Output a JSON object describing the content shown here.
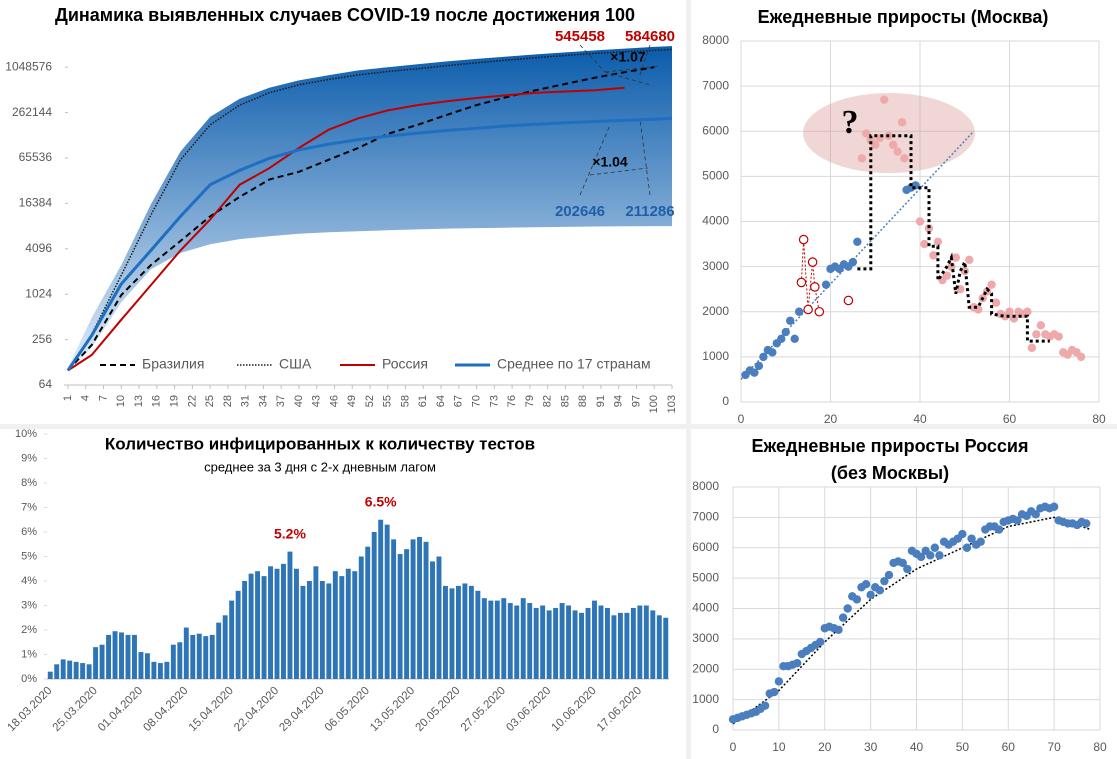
{
  "chart_data": [
    {
      "type": "line",
      "title": "Динамика выявленных случаев COVID-19 после достижения 100",
      "yscale": "log",
      "ylim": [
        64,
        2097152
      ],
      "yticks": [
        64,
        256,
        1024,
        4096,
        16384,
        65536,
        262144,
        1048576
      ],
      "xlim": [
        1,
        103
      ],
      "xticks": [
        1,
        4,
        7,
        10,
        13,
        16,
        19,
        22,
        25,
        28,
        31,
        34,
        37,
        40,
        43,
        46,
        49,
        52,
        55,
        58,
        61,
        64,
        67,
        70,
        73,
        76,
        79,
        82,
        85,
        88,
        91,
        94,
        97,
        100,
        103
      ],
      "x": [
        1,
        5,
        10,
        15,
        20,
        25,
        30,
        35,
        40,
        45,
        50,
        55,
        60,
        65,
        70,
        75,
        80,
        85,
        90,
        95,
        100,
        103
      ],
      "band": {
        "color_top": "#0a5bab",
        "color_bottom": "#e3eef9",
        "upper": [
          110,
          500,
          2500,
          16000,
          80000,
          230000,
          400000,
          560000,
          700000,
          820000,
          950000,
          1050000,
          1150000,
          1250000,
          1350000,
          1450000,
          1550000,
          1650000,
          1750000,
          1850000,
          1950000,
          2000000
        ],
        "lower": [
          100,
          200,
          800,
          2200,
          3600,
          4700,
          5500,
          6000,
          6500,
          6800,
          7000,
          7200,
          7400,
          7600,
          7700,
          7800,
          7900,
          8000,
          8100,
          8150,
          8200,
          8200
        ]
      },
      "series": [
        {
          "name": "Бразилия",
          "color": "#000000",
          "dash": "dashed",
          "width": 2,
          "values": [
            100,
            217,
            1000,
            2500,
            5200,
            11000,
            20000,
            34000,
            43000,
            62000,
            89000,
            137000,
            180000,
            245000,
            330000,
            420000,
            520000,
            630000,
            760000,
            900000,
            1050000,
            null
          ]
        },
        {
          "name": "США",
          "color": "#1a1a1a",
          "dash": "dotted",
          "width": 1.5,
          "values": [
            100,
            300,
            1830,
            11500,
            62000,
            180000,
            330000,
            480000,
            613000,
            720000,
            830000,
            920000,
            1000000,
            1100000,
            1200000,
            1300000,
            1400000,
            1500000,
            1600000,
            1680000,
            1750000,
            1800000
          ]
        },
        {
          "name": "Россия",
          "color": "#c00000",
          "dash": "solid",
          "width": 2,
          "values": [
            100,
            160,
            470,
            1350,
            3900,
            10000,
            29000,
            48000,
            89000,
            155000,
            220000,
            280000,
            330000,
            370000,
            410000,
            445000,
            480000,
            500000,
            520000,
            560000,
            null,
            null
          ]
        },
        {
          "name": "Среднее по 17 странам",
          "color": "#1f6fc0",
          "dash": "solid",
          "width": 3,
          "values": [
            100,
            290,
            1400,
            3900,
            11000,
            29000,
            45000,
            65000,
            84000,
            100000,
            115000,
            128000,
            140000,
            152000,
            163000,
            174000,
            184000,
            192000,
            200000,
            207000,
            214000,
            220000
          ]
        }
      ],
      "annotations": [
        {
          "text": "545458",
          "color": "#c00000"
        },
        {
          "text": "584680",
          "color": "#c00000"
        },
        {
          "text": "×1.07",
          "color": "#000000"
        },
        {
          "text": "×1.04",
          "color": "#000000"
        },
        {
          "text": "202646",
          "color": "#1f5fa8"
        },
        {
          "text": "211286",
          "color": "#1f5fa8"
        }
      ]
    },
    {
      "type": "scatter",
      "title": "Ежедневные приросты (Москва)",
      "grid": true,
      "xlim": [
        0,
        80
      ],
      "xticks": [
        0,
        20,
        40,
        60,
        80
      ],
      "ylim": [
        0,
        8000
      ],
      "yticks": [
        0,
        1000,
        2000,
        3000,
        4000,
        5000,
        6000,
        7000,
        8000
      ],
      "series": [
        {
          "color": "#4a7ebf",
          "marker": "filled",
          "x": [
            1,
            2,
            3,
            4,
            5,
            6,
            7,
            8,
            9,
            10,
            11,
            12,
            13,
            19,
            20,
            21,
            22,
            23,
            24,
            25,
            26,
            37,
            38,
            39
          ],
          "values": [
            600,
            700,
            650,
            800,
            1000,
            1150,
            1100,
            1300,
            1400,
            1550,
            1800,
            1400,
            2000,
            2600,
            2950,
            3000,
            2950,
            3050,
            3000,
            3100,
            3550,
            4700,
            4750,
            4800
          ]
        },
        {
          "color": "#eeaaaa",
          "marker": "filled",
          "x": [
            27,
            28,
            29,
            30,
            31,
            32,
            33,
            34,
            35,
            36,
            36.5,
            40,
            41,
            42,
            43,
            44,
            45,
            46,
            47,
            48,
            49,
            50,
            51,
            52,
            53,
            54,
            55,
            56,
            57,
            58,
            59,
            60,
            61,
            62,
            63,
            64,
            65,
            66,
            67,
            68,
            69,
            70,
            71,
            72,
            73,
            74,
            75,
            76
          ],
          "values": [
            5400,
            5950,
            5800,
            5700,
            5850,
            6700,
            5900,
            5700,
            5550,
            6200,
            5400,
            4000,
            3500,
            3850,
            3250,
            3550,
            2700,
            2800,
            3000,
            3200,
            2500,
            2900,
            3150,
            2100,
            2050,
            2300,
            2450,
            2600,
            2200,
            1950,
            1900,
            2000,
            1850,
            2000,
            1950,
            2000,
            1200,
            1500,
            1700,
            1500,
            1450,
            1500,
            1450,
            1100,
            1050,
            1150,
            1100,
            1000
          ]
        },
        {
          "color": "#c00000",
          "marker": "hollow",
          "connect": true,
          "x": [
            13.5,
            14,
            15,
            16,
            16.5,
            17.5,
            24
          ],
          "values": [
            2650,
            3600,
            2050,
            3100,
            2550,
            2000,
            2250
          ]
        }
      ],
      "step": {
        "color": "#000000",
        "x": [
          26,
          29,
          29,
          38,
          38,
          42,
          42,
          44,
          44,
          46,
          47,
          48,
          49,
          50,
          51,
          53,
          55,
          56,
          56,
          59,
          64,
          64,
          69
        ],
        "values": [
          2950,
          2950,
          5900,
          5900,
          4750,
          4750,
          3450,
          3450,
          2700,
          3000,
          3200,
          2400,
          2900,
          3100,
          2100,
          2100,
          2500,
          2400,
          1950,
          1900,
          1900,
          1350,
          1350
        ]
      },
      "trend": {
        "color": "#4a7ebf",
        "x": [
          0,
          52
        ],
        "values": [
          500,
          6000
        ]
      },
      "annotation": "?"
    },
    {
      "type": "bar",
      "title": "Количество инфицированных к количеству тестов",
      "subtitle": "среднее за 3 дня с 2-х дневным лагом",
      "color": "#2e75b6",
      "label_color": "#c00000",
      "ylim": [
        0,
        10
      ],
      "yticks": [
        {
          "value": 0,
          "label": "0%"
        },
        {
          "value": 1,
          "label": "1%"
        },
        {
          "value": 2,
          "label": "2%"
        },
        {
          "value": 3,
          "label": "3%"
        },
        {
          "value": 4,
          "label": "4%"
        },
        {
          "value": 5,
          "label": "5%"
        },
        {
          "value": 6,
          "label": "6%"
        },
        {
          "value": 7,
          "label": "7%"
        },
        {
          "value": 8,
          "label": "8%"
        },
        {
          "value": 9,
          "label": "9%"
        },
        {
          "value": 10,
          "label": "10%"
        }
      ],
      "categories": [
        "18.03.2020",
        null,
        null,
        null,
        null,
        null,
        null,
        "25.03.2020",
        null,
        null,
        null,
        null,
        null,
        null,
        "01.04.2020",
        null,
        null,
        null,
        null,
        null,
        null,
        "08.04.2020",
        null,
        null,
        null,
        null,
        null,
        null,
        "15.04.2020",
        null,
        null,
        null,
        null,
        null,
        null,
        "22.04.2020",
        null,
        null,
        null,
        null,
        null,
        null,
        "29.04.2020",
        null,
        null,
        null,
        null,
        null,
        null,
        "06.05.2020",
        null,
        null,
        null,
        null,
        null,
        null,
        "13.05.2020",
        null,
        null,
        null,
        null,
        null,
        null,
        "20.05.2020",
        null,
        null,
        null,
        null,
        null,
        null,
        "27.05.2020",
        null,
        null,
        null,
        null,
        null,
        null,
        "03.06.2020",
        null,
        null,
        null,
        null,
        null,
        null,
        "10.06.2020",
        null,
        null,
        null,
        null,
        null,
        null,
        "17.06.2020",
        null,
        null,
        null,
        null
      ],
      "values": [
        0.3,
        0.6,
        0.8,
        0.75,
        0.7,
        0.65,
        0.6,
        1.3,
        1.4,
        1.8,
        1.95,
        1.9,
        1.8,
        1.8,
        1.1,
        1.05,
        0.7,
        0.65,
        0.7,
        1.4,
        1.5,
        2.1,
        1.8,
        1.85,
        1.75,
        1.8,
        2.3,
        2.6,
        3.2,
        3.6,
        4.0,
        4.3,
        4.4,
        4.2,
        4.6,
        4.5,
        4.7,
        5.2,
        4.5,
        3.8,
        4.0,
        4.6,
        4.0,
        3.9,
        4.4,
        4.2,
        4.5,
        4.4,
        5.0,
        5.4,
        6.0,
        6.5,
        6.3,
        5.7,
        5.1,
        5.3,
        5.7,
        5.8,
        5.6,
        4.8,
        5.0,
        3.8,
        3.7,
        3.8,
        3.9,
        3.8,
        3.6,
        3.3,
        3.2,
        3.2,
        3.3,
        3.1,
        3.0,
        3.3,
        3.1,
        2.9,
        3.0,
        2.8,
        2.9,
        3.1,
        3.0,
        2.8,
        2.7,
        2.9,
        3.2,
        3.0,
        2.9,
        2.6,
        2.7,
        2.7,
        2.9,
        3.0,
        3.0,
        2.8,
        2.6,
        2.5
      ],
      "value_labels": [
        null,
        null,
        null,
        null,
        null,
        null,
        null,
        null,
        null,
        null,
        null,
        null,
        null,
        null,
        null,
        null,
        null,
        null,
        null,
        null,
        null,
        null,
        null,
        null,
        null,
        null,
        null,
        null,
        null,
        null,
        null,
        null,
        null,
        null,
        null,
        null,
        null,
        "5.2%",
        null,
        null,
        null,
        null,
        null,
        null,
        null,
        null,
        null,
        null,
        null,
        null,
        null,
        "6.5%",
        null,
        null,
        null,
        null,
        null,
        null,
        null,
        null,
        null,
        null,
        null,
        null,
        null,
        null,
        null,
        null,
        null,
        null,
        null,
        null,
        null,
        null,
        null,
        null,
        null,
        null,
        null,
        null,
        null,
        null,
        null,
        null,
        null,
        null,
        null,
        null,
        null,
        null,
        null,
        null,
        null,
        null,
        null,
        null
      ]
    },
    {
      "type": "scatter",
      "title": [
        "Ежедневные приросты Россия",
        "(без Москвы)"
      ],
      "grid": true,
      "xlim": [
        0,
        80
      ],
      "xticks": [
        0,
        10,
        20,
        30,
        40,
        50,
        60,
        70,
        80
      ],
      "ylim": [
        0,
        8000
      ],
      "yticks": [
        0,
        1000,
        2000,
        3000,
        4000,
        5000,
        6000,
        7000,
        8000
      ],
      "series": [
        {
          "color": "#4a7ebf",
          "marker": "filled",
          "x": [
            0,
            1,
            2,
            3,
            4,
            5,
            6,
            7,
            8,
            9,
            10,
            11,
            12,
            13,
            14,
            15,
            16,
            17,
            18,
            19,
            20,
            21,
            22,
            23,
            24,
            25,
            26,
            27,
            28,
            29,
            30,
            31,
            32,
            33,
            34,
            35,
            36,
            37,
            38,
            39,
            40,
            41,
            42,
            43,
            44,
            45,
            46,
            47,
            48,
            49,
            50,
            51,
            52,
            53,
            54,
            55,
            56,
            57,
            58,
            59,
            60,
            61,
            62,
            63,
            64,
            65,
            66,
            67,
            68,
            69,
            70,
            71,
            72,
            73,
            74,
            75,
            76,
            77
          ],
          "values": [
            350,
            400,
            450,
            500,
            550,
            600,
            700,
            800,
            1200,
            1250,
            1600,
            2100,
            2100,
            2150,
            2200,
            2500,
            2600,
            2700,
            2800,
            2900,
            3350,
            3400,
            3350,
            3300,
            3700,
            4000,
            4400,
            4300,
            4700,
            4800,
            4450,
            4700,
            4600,
            4900,
            5100,
            5500,
            5550,
            5500,
            5300,
            5900,
            5800,
            5700,
            5900,
            5750,
            6000,
            5750,
            6200,
            6100,
            6200,
            6300,
            6450,
            6000,
            6300,
            6100,
            6200,
            6600,
            6700,
            6700,
            6600,
            6850,
            6900,
            6950,
            6900,
            7100,
            7050,
            7200,
            7100,
            7300,
            7350,
            7300,
            7350,
            6900,
            6850,
            6800,
            6800,
            6750,
            6850,
            6800
          ]
        }
      ],
      "trend": {
        "color": "#000000",
        "x": [
          0,
          10,
          20,
          30,
          40,
          50,
          60,
          70,
          78
        ],
        "values": [
          200,
          1300,
          2900,
          4300,
          5300,
          6000,
          6700,
          7000,
          6600
        ]
      }
    }
  ]
}
